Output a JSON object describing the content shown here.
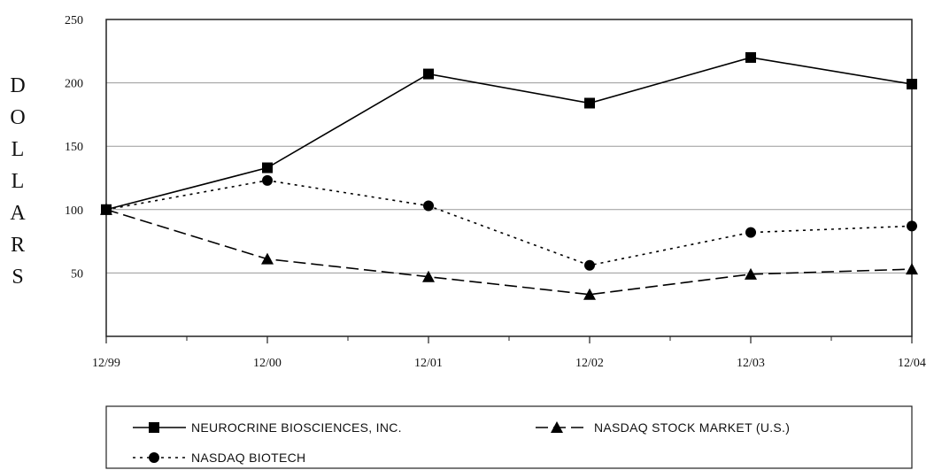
{
  "chart_data": {
    "type": "line",
    "title": "",
    "xlabel": "",
    "ylabel": "DOLLARS",
    "x": [
      "12/99",
      "12/00",
      "12/01",
      "12/02",
      "12/03",
      "12/04"
    ],
    "yticks": [
      "50",
      "100",
      "150",
      "200",
      "250"
    ],
    "ylim": [
      0,
      250
    ],
    "grid": true,
    "legend_position": "bottom",
    "series": [
      {
        "name": "NEUROCRINE BIOSCIENCES, INC.",
        "marker": "square",
        "dash": "solid",
        "values": [
          100,
          133,
          207,
          184,
          220,
          199
        ]
      },
      {
        "name": "NASDAQ STOCK MARKET (U.S.)",
        "marker": "triangle",
        "dash": "long-dash",
        "values": [
          100,
          61,
          47,
          33,
          49,
          53
        ]
      },
      {
        "name": "NASDAQ BIOTECH",
        "marker": "circle",
        "dash": "dotted",
        "values": [
          100,
          123,
          103,
          56,
          82,
          87
        ]
      }
    ]
  }
}
